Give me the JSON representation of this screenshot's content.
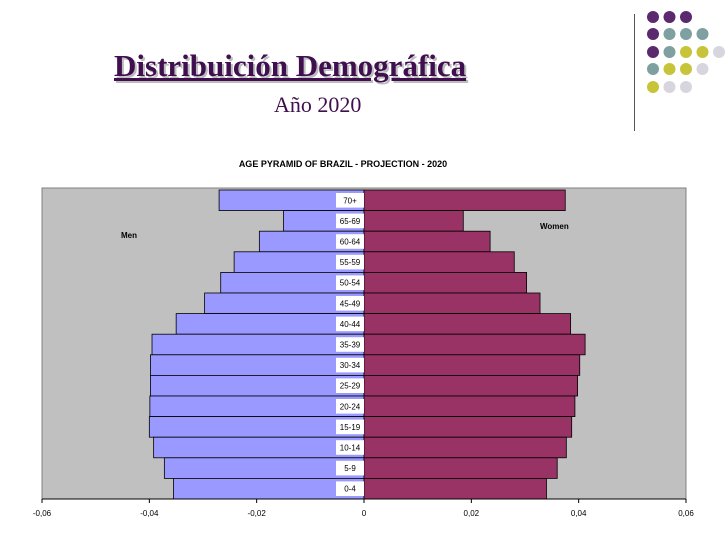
{
  "slide": {
    "title": "Distribuición Demográfica",
    "subtitle": "Año 2020",
    "dot_colors": [
      "#5b2a6e",
      "#7fa0a0",
      "#c8c43a",
      "#d7d6df"
    ]
  },
  "chart_data": {
    "type": "bar",
    "title": "AGE PYRAMID OF BRAZIL - PROJECTION - 2020",
    "categories": [
      "70+",
      "65-69",
      "60-64",
      "55-59",
      "50-54",
      "45-49",
      "40-44",
      "35-39",
      "30-34",
      "25-29",
      "20-24",
      "15-19",
      "10-14",
      "5-9",
      "0-4"
    ],
    "series": [
      {
        "name": "Men",
        "color": "#9999ff",
        "values": [
          -0.027,
          -0.015,
          -0.0195,
          -0.0242,
          -0.0267,
          -0.0297,
          -0.035,
          -0.0395,
          -0.0398,
          -0.0398,
          -0.0399,
          -0.04,
          -0.0392,
          -0.0372,
          -0.0355
        ]
      },
      {
        "name": "Women",
        "color": "#993366",
        "values": [
          0.0375,
          0.0185,
          0.0235,
          0.028,
          0.0303,
          0.0328,
          0.0385,
          0.0412,
          0.0402,
          0.0398,
          0.0393,
          0.0387,
          0.0377,
          0.036,
          0.034
        ]
      }
    ],
    "xlim": [
      -0.06,
      0.06
    ],
    "xticks": [
      "-0,06",
      "-0,04",
      "-0,02",
      "0",
      "0,02",
      "0,04",
      "0,06"
    ],
    "legend": {
      "men": "Men",
      "women": "Women"
    },
    "plot_background": "#c0c0c0"
  }
}
